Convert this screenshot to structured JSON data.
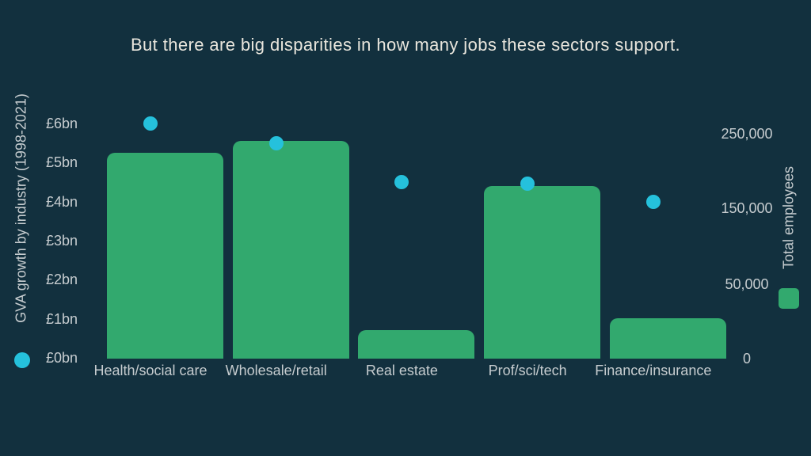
{
  "title": "But there are big disparities in how many jobs these sectors support.",
  "colors": {
    "background": "#12303E",
    "bar": "#32A96E",
    "dot": "#25C1DC",
    "axis_text": "#C6CCCF",
    "title_text": "#E9E6DD"
  },
  "chart_data": {
    "type": "combo-bar-scatter-dual-axis",
    "title": "But there are big disparities in how many jobs these sectors support.",
    "categories": [
      "Health/social care",
      "Wholesale/retail",
      "Real estate",
      "Prof/sci/tech",
      "Finance/insurance"
    ],
    "series": [
      {
        "name": "Total employees",
        "type": "bar",
        "axis": "right",
        "marker": "green-square",
        "values": [
          225000,
          240000,
          19000,
          180000,
          27000
        ]
      },
      {
        "name": "GVA growth by industry (1998-2021)",
        "type": "scatter",
        "axis": "left",
        "marker": "cyan-dot",
        "values": [
          6.0,
          5.5,
          4.5,
          4.45,
          4.0
        ]
      }
    ],
    "left_axis": {
      "label": "GVA growth by industry (1998-2021)",
      "tick_labels": [
        "£6bn",
        "£5bn",
        "£4bn",
        "£3bn",
        "£2bn",
        "£1bn",
        "£0bn"
      ],
      "tick_values": [
        6,
        5,
        4,
        3,
        2,
        1,
        0
      ],
      "range": [
        0,
        6
      ]
    },
    "right_axis": {
      "label": "Total employees",
      "tick_labels": [
        "250,000",
        "150,000",
        "50,000",
        "0"
      ],
      "tick_values": [
        250000,
        150000,
        50000,
        0
      ],
      "range": [
        0,
        265000
      ]
    },
    "gridlines": false,
    "legend_position": "axis-adjacent-markers"
  }
}
